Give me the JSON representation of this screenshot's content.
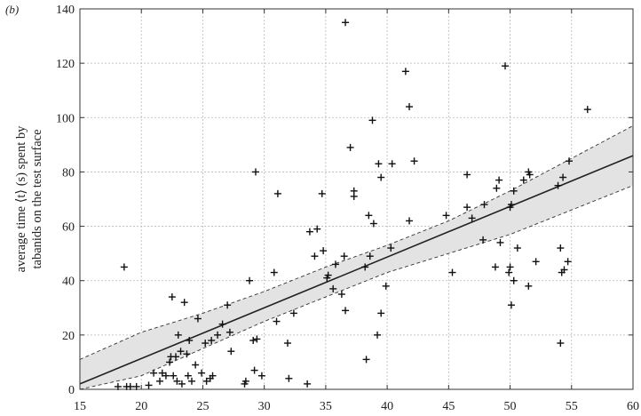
{
  "panel_label": "(b)",
  "chart_data": {
    "type": "scatter",
    "title": "",
    "xlabel": "",
    "ylabel_line1": "average time ⟨t⟩ (s) spent by",
    "ylabel_line2": "tabanids on the test surface",
    "xlim": [
      15,
      60
    ],
    "ylim": [
      0,
      140
    ],
    "xticks": [
      15,
      20,
      25,
      30,
      35,
      40,
      45,
      50,
      55,
      60
    ],
    "yticks": [
      0,
      20,
      40,
      60,
      80,
      100,
      120,
      140
    ],
    "grid": true,
    "marker": "plus",
    "regression_line": {
      "x": [
        15,
        60
      ],
      "y": [
        2,
        86
      ]
    },
    "confidence_band": {
      "x": [
        15,
        20,
        25,
        30,
        35,
        40,
        45,
        50,
        55,
        60
      ],
      "lower": [
        -7,
        5,
        15,
        25,
        34,
        43,
        50,
        57,
        66,
        75
      ],
      "upper": [
        11,
        21,
        28,
        36,
        45,
        53,
        62,
        73,
        85,
        97
      ]
    },
    "points": [
      {
        "x": 18.1,
        "y": 1
      },
      {
        "x": 18.6,
        "y": 45
      },
      {
        "x": 18.8,
        "y": 1
      },
      {
        "x": 19.1,
        "y": 1
      },
      {
        "x": 19.6,
        "y": 1
      },
      {
        "x": 20.6,
        "y": 1.5
      },
      {
        "x": 21.0,
        "y": 6
      },
      {
        "x": 21.5,
        "y": 3
      },
      {
        "x": 21.7,
        "y": 6
      },
      {
        "x": 22.0,
        "y": 5
      },
      {
        "x": 22.3,
        "y": 10
      },
      {
        "x": 22.4,
        "y": 12
      },
      {
        "x": 22.5,
        "y": 34
      },
      {
        "x": 22.6,
        "y": 5
      },
      {
        "x": 22.8,
        "y": 12
      },
      {
        "x": 22.9,
        "y": 3
      },
      {
        "x": 23.0,
        "y": 20
      },
      {
        "x": 23.2,
        "y": 14
      },
      {
        "x": 23.3,
        "y": 2
      },
      {
        "x": 23.5,
        "y": 32
      },
      {
        "x": 23.7,
        "y": 13
      },
      {
        "x": 23.8,
        "y": 5
      },
      {
        "x": 23.9,
        "y": 18
      },
      {
        "x": 24.1,
        "y": 3
      },
      {
        "x": 24.4,
        "y": 9
      },
      {
        "x": 24.6,
        "y": 26
      },
      {
        "x": 24.9,
        "y": 6
      },
      {
        "x": 25.2,
        "y": 17
      },
      {
        "x": 25.3,
        "y": 3
      },
      {
        "x": 25.6,
        "y": 4
      },
      {
        "x": 25.7,
        "y": 18
      },
      {
        "x": 25.8,
        "y": 5
      },
      {
        "x": 26.2,
        "y": 20
      },
      {
        "x": 26.6,
        "y": 24
      },
      {
        "x": 27.0,
        "y": 31
      },
      {
        "x": 27.2,
        "y": 21
      },
      {
        "x": 27.3,
        "y": 14
      },
      {
        "x": 28.4,
        "y": 2
      },
      {
        "x": 28.5,
        "y": 3
      },
      {
        "x": 28.8,
        "y": 40
      },
      {
        "x": 29.1,
        "y": 18
      },
      {
        "x": 29.2,
        "y": 7
      },
      {
        "x": 29.3,
        "y": 80
      },
      {
        "x": 29.4,
        "y": 18.5
      },
      {
        "x": 29.8,
        "y": 5
      },
      {
        "x": 30.8,
        "y": 43
      },
      {
        "x": 31.0,
        "y": 25
      },
      {
        "x": 31.1,
        "y": 72
      },
      {
        "x": 31.9,
        "y": 17
      },
      {
        "x": 32.0,
        "y": 4
      },
      {
        "x": 32.4,
        "y": 28
      },
      {
        "x": 33.5,
        "y": 2
      },
      {
        "x": 33.7,
        "y": 58
      },
      {
        "x": 34.1,
        "y": 49
      },
      {
        "x": 34.3,
        "y": 59
      },
      {
        "x": 34.7,
        "y": 72
      },
      {
        "x": 34.8,
        "y": 51
      },
      {
        "x": 35.1,
        "y": 41
      },
      {
        "x": 35.2,
        "y": 42
      },
      {
        "x": 35.6,
        "y": 37
      },
      {
        "x": 35.8,
        "y": 46
      },
      {
        "x": 36.3,
        "y": 35
      },
      {
        "x": 36.5,
        "y": 49
      },
      {
        "x": 36.6,
        "y": 29
      },
      {
        "x": 36.6,
        "y": 135
      },
      {
        "x": 37.0,
        "y": 89
      },
      {
        "x": 37.3,
        "y": 73
      },
      {
        "x": 37.3,
        "y": 71
      },
      {
        "x": 38.2,
        "y": 45
      },
      {
        "x": 38.3,
        "y": 11
      },
      {
        "x": 38.5,
        "y": 64
      },
      {
        "x": 38.6,
        "y": 49
      },
      {
        "x": 38.8,
        "y": 99
      },
      {
        "x": 38.9,
        "y": 61
      },
      {
        "x": 39.2,
        "y": 20
      },
      {
        "x": 39.3,
        "y": 83
      },
      {
        "x": 39.5,
        "y": 78
      },
      {
        "x": 39.5,
        "y": 28
      },
      {
        "x": 39.9,
        "y": 38
      },
      {
        "x": 40.3,
        "y": 52
      },
      {
        "x": 40.4,
        "y": 83
      },
      {
        "x": 41.5,
        "y": 117
      },
      {
        "x": 41.8,
        "y": 104
      },
      {
        "x": 41.8,
        "y": 62
      },
      {
        "x": 42.2,
        "y": 84
      },
      {
        "x": 44.8,
        "y": 64
      },
      {
        "x": 45.3,
        "y": 43
      },
      {
        "x": 46.5,
        "y": 79
      },
      {
        "x": 46.5,
        "y": 67
      },
      {
        "x": 46.9,
        "y": 63
      },
      {
        "x": 47.8,
        "y": 55
      },
      {
        "x": 47.9,
        "y": 68
      },
      {
        "x": 48.8,
        "y": 45
      },
      {
        "x": 48.9,
        "y": 74
      },
      {
        "x": 49.1,
        "y": 77
      },
      {
        "x": 49.2,
        "y": 54
      },
      {
        "x": 49.6,
        "y": 119
      },
      {
        "x": 49.9,
        "y": 43
      },
      {
        "x": 50.0,
        "y": 67
      },
      {
        "x": 50.0,
        "y": 45
      },
      {
        "x": 50.1,
        "y": 68
      },
      {
        "x": 50.1,
        "y": 31
      },
      {
        "x": 50.3,
        "y": 73
      },
      {
        "x": 50.3,
        "y": 40
      },
      {
        "x": 50.6,
        "y": 52
      },
      {
        "x": 51.1,
        "y": 77
      },
      {
        "x": 51.5,
        "y": 38
      },
      {
        "x": 51.5,
        "y": 80
      },
      {
        "x": 51.6,
        "y": 79
      },
      {
        "x": 52.1,
        "y": 47
      },
      {
        "x": 53.9,
        "y": 75
      },
      {
        "x": 54.1,
        "y": 52
      },
      {
        "x": 54.1,
        "y": 17
      },
      {
        "x": 54.3,
        "y": 78
      },
      {
        "x": 54.2,
        "y": 43
      },
      {
        "x": 54.4,
        "y": 44
      },
      {
        "x": 54.7,
        "y": 47
      },
      {
        "x": 54.8,
        "y": 84
      },
      {
        "x": 56.3,
        "y": 103
      }
    ]
  }
}
